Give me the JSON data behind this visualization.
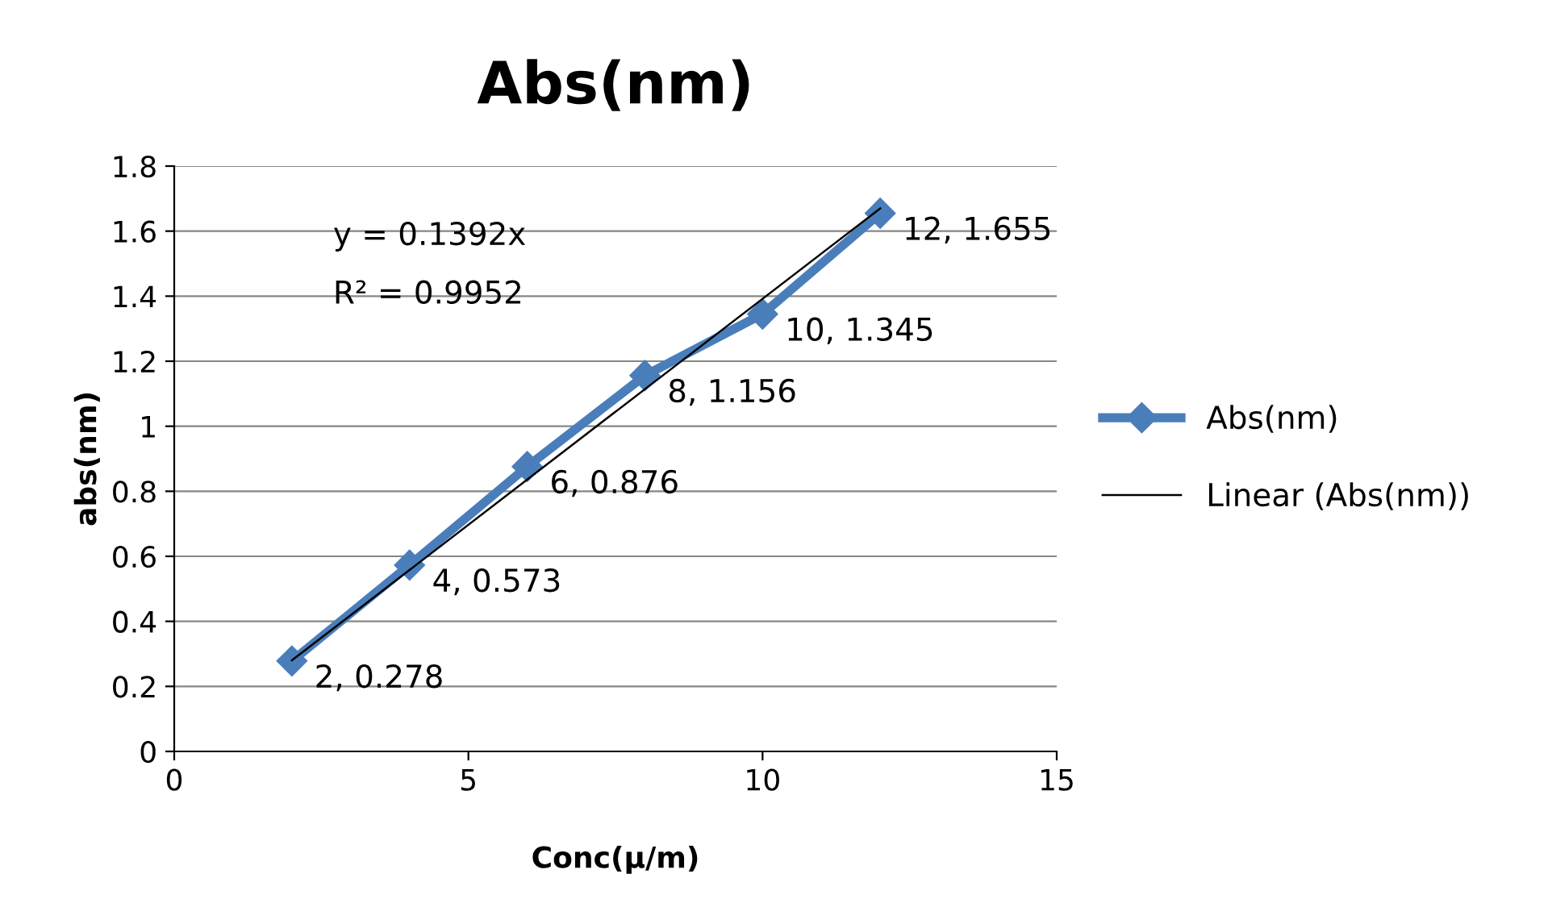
{
  "chart_data": {
    "type": "line",
    "title": "Abs(nm)",
    "xlabel": "Conc(μ/m)",
    "ylabel": "abs(nm)",
    "xlim": [
      0,
      15
    ],
    "xticks": [
      0,
      5,
      10,
      15
    ],
    "ylim": [
      0,
      1.8
    ],
    "yticks": [
      0,
      0.2,
      0.4,
      0.6,
      0.8,
      1,
      1.2,
      1.4,
      1.6,
      1.8
    ],
    "grid": "y",
    "legend": "right",
    "series": [
      {
        "name": "Abs(nm)",
        "color": "#4a7ebb",
        "x": [
          2,
          4,
          6,
          8,
          10,
          12
        ],
        "values": [
          0.278,
          0.573,
          0.876,
          1.156,
          1.345,
          1.655
        ],
        "marker": "diamond",
        "value_labels": [
          "2, 0.278",
          "4, 0.573",
          "6, 0.876",
          "8, 1.156",
          "10, 1.345",
          "12, 1.655"
        ]
      },
      {
        "name": "Linear (Abs(nm))",
        "color": "#000000",
        "x": [
          2,
          12
        ],
        "values": [
          0.28,
          1.67
        ],
        "marker": "none"
      }
    ],
    "annotations": [
      "y = 0.1392x",
      "R² = 0.9952"
    ]
  }
}
